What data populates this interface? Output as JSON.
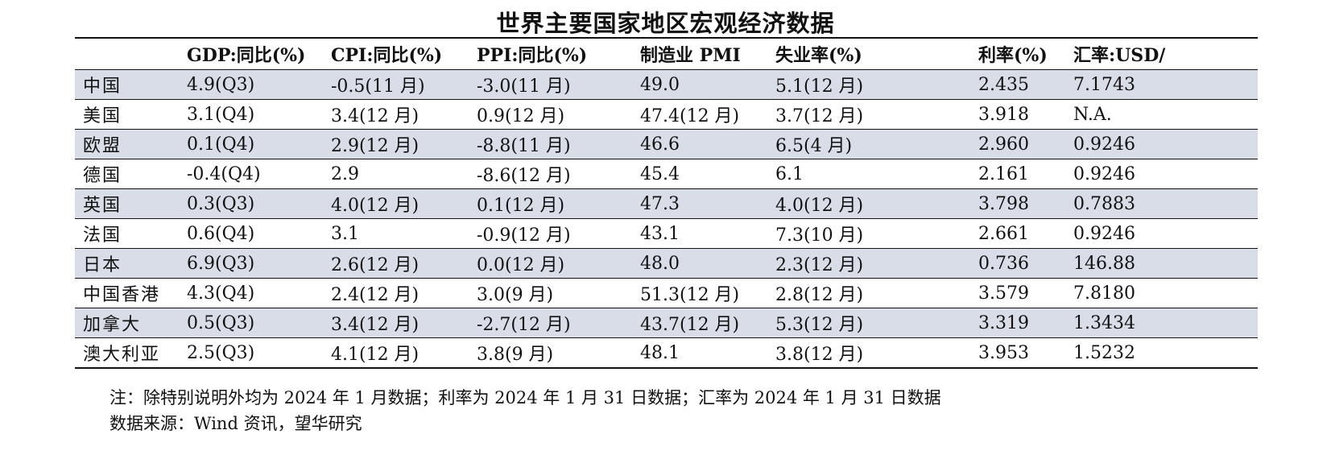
{
  "title": "世界主要国家地区宏观经济数据",
  "columns": [
    "",
    "GDP:同比(%)",
    "CPI:同比(%)",
    "PPI:同比(%)",
    "制造业 PMI",
    "失业率(%)",
    "利率(%)",
    "汇率:USD/"
  ],
  "rows": [
    [
      "中国",
      "4.9(Q3)",
      "-0.5(11 月)",
      "-3.0(11 月)",
      "49.0",
      "5.1(12 月)",
      "2.435",
      "7.1743"
    ],
    [
      "美国",
      "3.1(Q4)",
      "3.4(12 月)",
      "0.9(12 月)",
      "47.4(12 月)",
      "3.7(12 月)",
      "3.918",
      "N.A."
    ],
    [
      "欧盟",
      "0.1(Q4)",
      "2.9(12 月)",
      "-8.8(11 月)",
      "46.6",
      "6.5(4 月)",
      "2.960",
      "0.9246"
    ],
    [
      "德国",
      "-0.4(Q4)",
      "2.9",
      "-8.6(12 月)",
      "45.4",
      "6.1",
      "2.161",
      "0.9246"
    ],
    [
      "英国",
      "0.3(Q3)",
      "4.0(12 月)",
      "0.1(12 月)",
      "47.3",
      "4.0(12 月)",
      "3.798",
      "0.7883"
    ],
    [
      "法国",
      "0.6(Q4)",
      "3.1",
      "-0.9(12 月)",
      "43.1",
      "7.3(10 月)",
      "2.661",
      "0.9246"
    ],
    [
      "日本",
      "6.9(Q3)",
      "2.6(12 月)",
      "0.0(12 月)",
      "48.0",
      "2.3(12 月)",
      "0.736",
      "146.88"
    ],
    [
      "中国香港",
      "4.3(Q4)",
      "2.4(12 月)",
      "3.0(9 月)",
      "51.3(12 月)",
      "2.8(12 月)",
      "3.579",
      "7.8180"
    ],
    [
      "加拿大",
      "0.5(Q3)",
      "3.4(12 月)",
      "-2.7(12 月)",
      "43.7(12 月)",
      "5.3(12 月)",
      "3.319",
      "1.3434"
    ],
    [
      "澳大利亚",
      "2.5(Q3)",
      "4.1(12 月)",
      "3.8(9 月)",
      "48.1",
      "3.8(12 月)",
      "3.953",
      "1.5232"
    ]
  ],
  "shaded_color": "#d9dde8",
  "note": "注：除特别说明外均为 2024 年 1 月数据；利率为 2024 年 1 月 31 日数据；汇率为 2024 年 1 月 31 日数据",
  "source": "数据来源：Wind 资讯，望华研究"
}
